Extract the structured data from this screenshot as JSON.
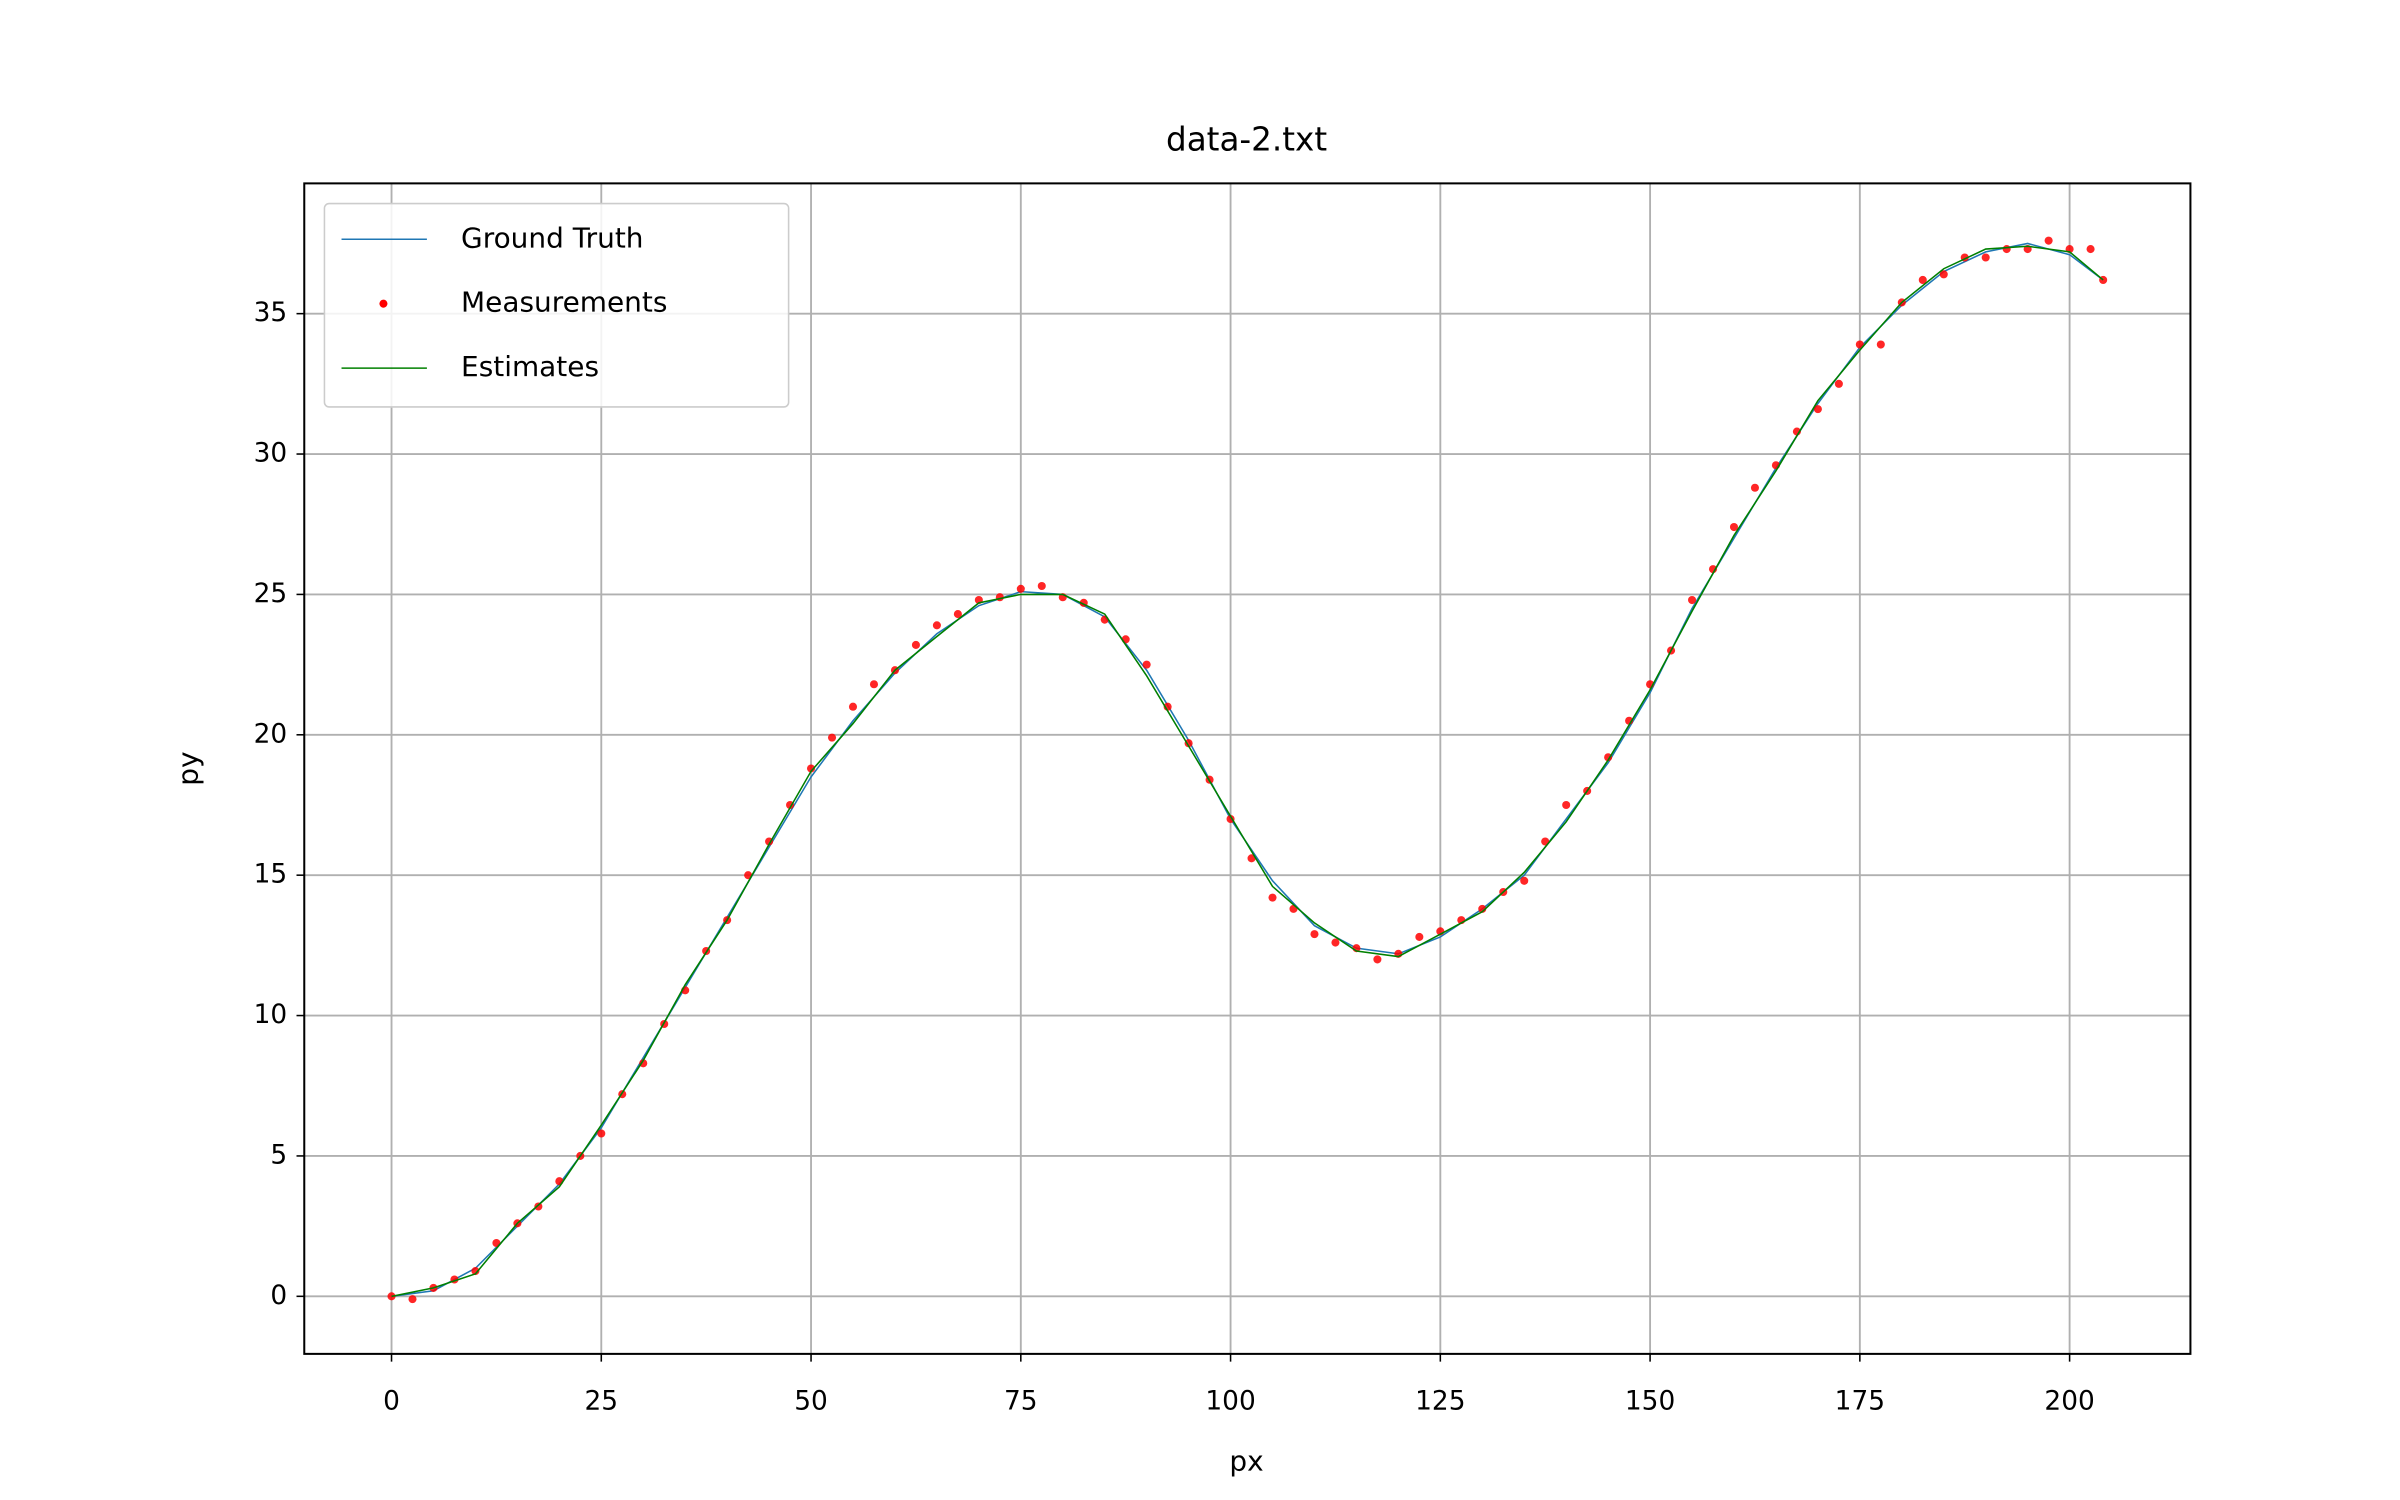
{
  "chart_data": {
    "type": "line",
    "title": "data-2.txt",
    "x_label": "px",
    "y_label": "py",
    "xlim": [
      -10.4,
      214.4
    ],
    "ylim": [
      -2.05,
      39.64
    ],
    "xticks": [
      0,
      25,
      50,
      75,
      100,
      125,
      150,
      175,
      200
    ],
    "yticks": [
      0,
      5,
      10,
      15,
      20,
      25,
      30,
      35
    ],
    "grid": true,
    "legend": "upper-left",
    "series": [
      {
        "name": "Ground Truth",
        "color": "#1f77b4",
        "mark": "line",
        "x": [
          0,
          5,
          10,
          15,
          20,
          25,
          30,
          35,
          40,
          45,
          50,
          55,
          60,
          65,
          70,
          75,
          80,
          85,
          90,
          95,
          100,
          105,
          110,
          115,
          120,
          125,
          130,
          135,
          140,
          145,
          150,
          155,
          160,
          165,
          170,
          175,
          180,
          185,
          190,
          195,
          200,
          204
        ],
        "values": [
          0,
          0.2,
          1,
          2.5,
          4,
          6,
          8.5,
          11,
          13.5,
          16,
          18.5,
          20.5,
          22.2,
          23.6,
          24.6,
          25.1,
          25,
          24.2,
          22.3,
          19.8,
          17,
          14.8,
          13.2,
          12.4,
          12.2,
          12.8,
          13.8,
          15,
          17,
          19,
          21.5,
          24.5,
          27,
          29.5,
          31.8,
          33.8,
          35.3,
          36.5,
          37.2,
          37.5,
          37.1,
          36.2
        ]
      },
      {
        "name": "Measurements",
        "color": "#ff0000",
        "mark": "scatter",
        "x": [
          0,
          2.5,
          5,
          7.5,
          10,
          12.5,
          15,
          17.5,
          20,
          22.5,
          25,
          27.5,
          30,
          32.5,
          35,
          37.5,
          40,
          42.5,
          45,
          47.5,
          50,
          52.5,
          55,
          57.5,
          60,
          62.5,
          65,
          67.5,
          70,
          72.5,
          75,
          77.5,
          80,
          82.5,
          85,
          87.5,
          90,
          92.5,
          95,
          97.5,
          100,
          102.5,
          105,
          107.5,
          110,
          112.5,
          115,
          117.5,
          120,
          122.5,
          125,
          127.5,
          130,
          132.5,
          135,
          137.5,
          140,
          142.5,
          145,
          147.5,
          150,
          152.5,
          155,
          157.5,
          160,
          162.5,
          165,
          167.5,
          170,
          172.5,
          175,
          177.5,
          180,
          182.5,
          185,
          187.5,
          190,
          192.5,
          195,
          197.5,
          200,
          202.5,
          204
        ],
        "values": [
          0,
          -0.1,
          0.3,
          0.6,
          0.9,
          1.9,
          2.6,
          3.2,
          4.1,
          5.0,
          5.8,
          7.2,
          8.3,
          9.7,
          10.9,
          12.3,
          13.4,
          15.0,
          16.2,
          17.5,
          18.8,
          19.9,
          21.0,
          21.8,
          22.3,
          23.2,
          23.9,
          24.3,
          24.8,
          24.9,
          25.2,
          25.3,
          24.9,
          24.7,
          24.1,
          23.4,
          22.5,
          21.0,
          19.7,
          18.4,
          17.0,
          15.6,
          14.2,
          13.8,
          12.9,
          12.6,
          12.4,
          12.0,
          12.2,
          12.8,
          13.0,
          13.4,
          13.8,
          14.4,
          14.8,
          16.2,
          17.5,
          18.0,
          19.2,
          20.5,
          21.8,
          23.0,
          24.8,
          25.9,
          27.4,
          28.8,
          29.6,
          30.8,
          31.6,
          32.5,
          33.9,
          33.9,
          35.4,
          36.2,
          36.4,
          37.0,
          37.0,
          37.3,
          37.3,
          37.6,
          37.3,
          37.3,
          36.2
        ]
      },
      {
        "name": "Estimates",
        "color": "#008000",
        "mark": "line",
        "x": [
          0,
          5,
          10,
          15,
          20,
          25,
          30,
          35,
          40,
          45,
          50,
          55,
          60,
          65,
          70,
          75,
          80,
          85,
          90,
          95,
          100,
          105,
          110,
          115,
          120,
          125,
          130,
          135,
          140,
          145,
          150,
          155,
          160,
          165,
          170,
          175,
          180,
          185,
          190,
          195,
          200,
          204
        ],
        "values": [
          0,
          0.3,
          0.8,
          2.6,
          3.9,
          6.1,
          8.4,
          11.1,
          13.4,
          16.1,
          18.7,
          20.4,
          22.3,
          23.5,
          24.7,
          25.0,
          25.0,
          24.3,
          22.1,
          19.6,
          17.1,
          14.6,
          13.3,
          12.3,
          12.1,
          12.9,
          13.7,
          15.1,
          16.9,
          19.1,
          21.6,
          24.4,
          27.1,
          29.4,
          31.9,
          33.7,
          35.4,
          36.6,
          37.3,
          37.4,
          37.2,
          36.2
        ]
      }
    ]
  }
}
